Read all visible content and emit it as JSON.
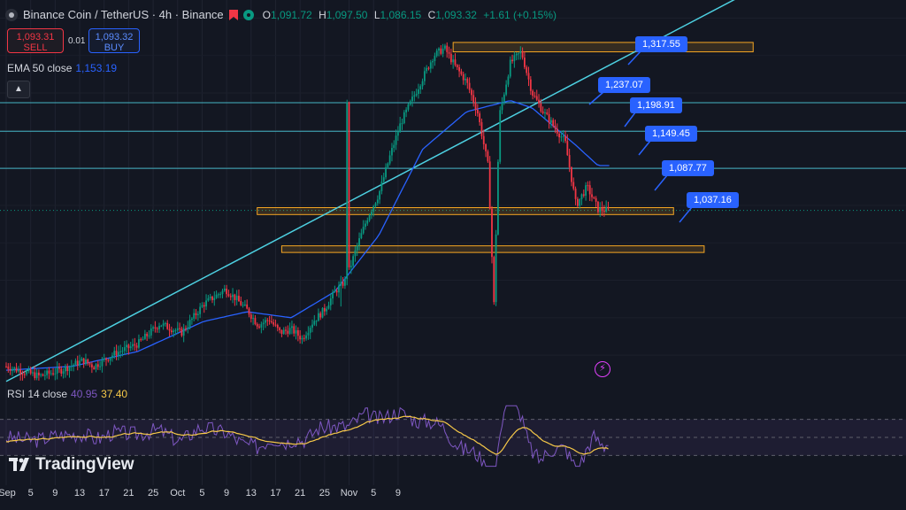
{
  "header": {
    "title": "Binance Coin / TetherUS · 4h · Binance",
    "o_key": "O",
    "o_val": "1,091.72",
    "h_key": "H",
    "h_val": "1,097.50",
    "l_key": "L",
    "l_val": "1,086.15",
    "c_key": "C",
    "c_val": "1,093.32",
    "change": "+1.61 (+0.15%)"
  },
  "trade": {
    "sell_price": "1,093.31",
    "sell_label": "SELL",
    "spread": "0.01",
    "buy_price": "1,093.32",
    "buy_label": "BUY"
  },
  "ema": {
    "label": "EMA 50 close",
    "value": "1,153.19"
  },
  "rsi": {
    "label": "RSI 14 close",
    "value1": "40.95",
    "value2": "37.40"
  },
  "watermark": "TradingView",
  "icons": {
    "collapse": "chevron-up-icon",
    "flash": "lightning-icon"
  },
  "colors": {
    "background": "#131722",
    "up": "#089981",
    "down": "#f23645",
    "ema": "#2962ff",
    "trendline": "#4dd0e1",
    "zone": "#f5a623",
    "label": "#2962ff",
    "rsi": "#7e57c2",
    "rsi_ma": "#f7c948"
  },
  "chart_data": {
    "type": "candlestick",
    "symbol": "BNBUSDT",
    "interval": "4h",
    "x_ticks": [
      "Sep",
      "5",
      "9",
      "13",
      "17",
      "21",
      "25",
      "Oct",
      "5",
      "9",
      "13",
      "17",
      "21",
      "25",
      "Nov",
      "5",
      "9"
    ],
    "ylim": [
      860,
      1360
    ],
    "price_path": [
      [
        0,
        885
      ],
      [
        3,
        872
      ],
      [
        5,
        880
      ],
      [
        7,
        893
      ],
      [
        8,
        885
      ],
      [
        10,
        903
      ],
      [
        12,
        915
      ],
      [
        14,
        942
      ],
      [
        16,
        930
      ],
      [
        18,
        968
      ],
      [
        20,
        988
      ],
      [
        21,
        975
      ],
      [
        22,
        960
      ],
      [
        23,
        940
      ],
      [
        24,
        948
      ],
      [
        25,
        930
      ],
      [
        26,
        935
      ],
      [
        27,
        922
      ],
      [
        28,
        945
      ],
      [
        29,
        960
      ],
      [
        30,
        985
      ],
      [
        31,
        1000
      ],
      [
        32,
        1045
      ],
      [
        33,
        1085
      ],
      [
        34,
        1115
      ],
      [
        35,
        1165
      ],
      [
        36,
        1210
      ],
      [
        37,
        1240
      ],
      [
        38,
        1270
      ],
      [
        39,
        1300
      ],
      [
        40,
        1310
      ],
      [
        41,
        1285
      ],
      [
        42,
        1265
      ],
      [
        43,
        1225
      ],
      [
        44,
        1150
      ],
      [
        44.5,
        965
      ],
      [
        45,
        1220
      ],
      [
        46,
        1290
      ],
      [
        47,
        1305
      ],
      [
        48,
        1250
      ],
      [
        49,
        1225
      ],
      [
        50,
        1205
      ],
      [
        51,
        1185
      ],
      [
        52,
        1100
      ],
      [
        53,
        1125
      ],
      [
        54,
        1095
      ],
      [
        55,
        1093.3
      ]
    ],
    "ema50_path": [
      [
        0,
        880
      ],
      [
        6,
        885
      ],
      [
        12,
        905
      ],
      [
        18,
        945
      ],
      [
        22,
        958
      ],
      [
        26,
        950
      ],
      [
        30,
        985
      ],
      [
        34,
        1060
      ],
      [
        38,
        1175
      ],
      [
        42,
        1225
      ],
      [
        46,
        1240
      ],
      [
        48,
        1230
      ],
      [
        50,
        1205
      ],
      [
        52,
        1180
      ],
      [
        54,
        1153.19
      ]
    ],
    "horizontal_levels": [
      1237.07,
      1198.91,
      1149.45
    ],
    "zones": [
      {
        "low": 1305,
        "high": 1317.55
      },
      {
        "low": 1087.77,
        "high": 1097
      },
      {
        "low": 1037.16,
        "high": 1046
      }
    ],
    "trendline": [
      [
        0,
        865
      ],
      [
        63,
        1135
      ]
    ],
    "price_labels": [
      "1,317.55",
      "1,237.07",
      "1,198.91",
      "1,149.45",
      "1,087.77",
      "1,037.16"
    ],
    "rsi": {
      "period": 14,
      "last": 40.95,
      "ma_last": 37.4,
      "levels": [
        70,
        50,
        30
      ]
    }
  }
}
